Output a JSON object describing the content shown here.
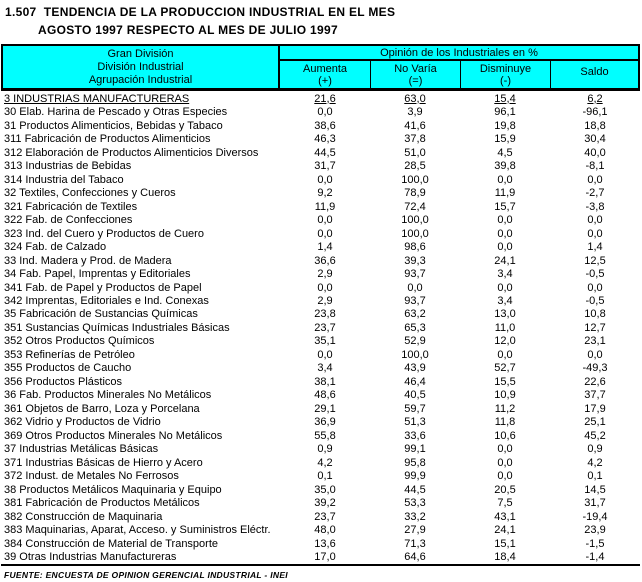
{
  "title": {
    "line1": "1.507  TENDENCIA DE LA PRODUCCION INDUSTRIAL EN EL MES",
    "line2": "AGOSTO 1997 RESPECTO AL MES DE JULIO 1997"
  },
  "table": {
    "header": {
      "left_lines": [
        "Gran División",
        "División Industrial",
        "Agrupación Industrial"
      ],
      "group_title": "Opinión de los Industriales en %",
      "columns": [
        {
          "label": "Aumenta",
          "sign": "(+)"
        },
        {
          "label": "No Varía",
          "sign": "(=)"
        },
        {
          "label": "Disminuye",
          "sign": "(-)"
        },
        {
          "label": "Saldo",
          "sign": ""
        }
      ],
      "header_bg": "#00FFFF"
    },
    "rows": [
      {
        "label": "3 INDUSTRIAS MANUFACTURERAS",
        "aumenta": "21,6",
        "no_varia": "63,0",
        "disminuye": "15,4",
        "saldo": "6,2",
        "underline": true
      },
      {
        "label": "30 Elab. Harina de Pescado y Otras Especies",
        "aumenta": "0,0",
        "no_varia": "3,9",
        "disminuye": "96,1",
        "saldo": "-96,1"
      },
      {
        "label": "31 Productos Alimenticios, Bebidas y Tabaco",
        "aumenta": "38,6",
        "no_varia": "41,6",
        "disminuye": "19,8",
        "saldo": "18,8"
      },
      {
        "label": "311 Fabricación de Productos Alimenticios",
        "aumenta": "46,3",
        "no_varia": "37,8",
        "disminuye": "15,9",
        "saldo": "30,4"
      },
      {
        "label": "312 Elaboración de Productos Alimenticios Diversos",
        "aumenta": "44,5",
        "no_varia": "51,0",
        "disminuye": "4,5",
        "saldo": "40,0"
      },
      {
        "label": "313 Industrias de Bebidas",
        "aumenta": "31,7",
        "no_varia": "28,5",
        "disminuye": "39,8",
        "saldo": "-8,1"
      },
      {
        "label": "314 Industria del Tabaco",
        "aumenta": "0,0",
        "no_varia": "100,0",
        "disminuye": "0,0",
        "saldo": "0,0"
      },
      {
        "label": "32 Textiles, Confecciones y Cueros",
        "aumenta": "9,2",
        "no_varia": "78,9",
        "disminuye": "11,9",
        "saldo": "-2,7"
      },
      {
        "label": "321 Fabricación de Textiles",
        "aumenta": "11,9",
        "no_varia": "72,4",
        "disminuye": "15,7",
        "saldo": "-3,8"
      },
      {
        "label": "322 Fab. de Confecciones",
        "aumenta": "0,0",
        "no_varia": "100,0",
        "disminuye": "0,0",
        "saldo": "0,0"
      },
      {
        "label": "323 Ind. del Cuero y Productos de Cuero",
        "aumenta": "0,0",
        "no_varia": "100,0",
        "disminuye": "0,0",
        "saldo": "0,0"
      },
      {
        "label": "324 Fab. de Calzado",
        "aumenta": "1,4",
        "no_varia": "98,6",
        "disminuye": "0,0",
        "saldo": "1,4"
      },
      {
        "label": "33 Ind. Madera y Prod. de Madera",
        "aumenta": "36,6",
        "no_varia": "39,3",
        "disminuye": "24,1",
        "saldo": "12,5"
      },
      {
        "label": "34 Fab. Papel, Imprentas y Editoriales",
        "aumenta": "2,9",
        "no_varia": "93,7",
        "disminuye": "3,4",
        "saldo": "-0,5"
      },
      {
        "label": "341 Fab. de Papel y Productos de Papel",
        "aumenta": "0,0",
        "no_varia": "0,0",
        "disminuye": "0,0",
        "saldo": "0,0"
      },
      {
        "label": "342 Imprentas, Editoriales e Ind. Conexas",
        "aumenta": "2,9",
        "no_varia": "93,7",
        "disminuye": "3,4",
        "saldo": "-0,5"
      },
      {
        "label": "35 Fabricación de Sustancias Químicas",
        "aumenta": "23,8",
        "no_varia": "63,2",
        "disminuye": "13,0",
        "saldo": "10,8"
      },
      {
        "label": "351 Sustancias Químicas Industriales Básicas",
        "aumenta": "23,7",
        "no_varia": "65,3",
        "disminuye": "11,0",
        "saldo": "12,7"
      },
      {
        "label": "352 Otros Productos Químicos",
        "aumenta": "35,1",
        "no_varia": "52,9",
        "disminuye": "12,0",
        "saldo": "23,1"
      },
      {
        "label": "353 Refinerías de Petróleo",
        "aumenta": "0,0",
        "no_varia": "100,0",
        "disminuye": "0,0",
        "saldo": "0,0"
      },
      {
        "label": "355 Productos de Caucho",
        "aumenta": "3,4",
        "no_varia": "43,9",
        "disminuye": "52,7",
        "saldo": "-49,3"
      },
      {
        "label": "356 Productos Plásticos",
        "aumenta": "38,1",
        "no_varia": "46,4",
        "disminuye": "15,5",
        "saldo": "22,6"
      },
      {
        "label": "36 Fab. Productos Minerales No Metálicos",
        "aumenta": "48,6",
        "no_varia": "40,5",
        "disminuye": "10,9",
        "saldo": "37,7"
      },
      {
        "label": "361 Objetos de Barro, Loza y Porcelana",
        "aumenta": "29,1",
        "no_varia": "59,7",
        "disminuye": "11,2",
        "saldo": "17,9"
      },
      {
        "label": "362 Vidrio y Productos de Vidrio",
        "aumenta": "36,9",
        "no_varia": "51,3",
        "disminuye": "11,8",
        "saldo": "25,1"
      },
      {
        "label": "369 Otros Productos Minerales No Metálicos",
        "aumenta": "55,8",
        "no_varia": "33,6",
        "disminuye": "10,6",
        "saldo": "45,2"
      },
      {
        "label": "37 Industrias Metálicas Básicas",
        "aumenta": "0,9",
        "no_varia": "99,1",
        "disminuye": "0,0",
        "saldo": "0,9"
      },
      {
        "label": "371 Industrias Básicas de Hierro y Acero",
        "aumenta": "4,2",
        "no_varia": "95,8",
        "disminuye": "0,0",
        "saldo": "4,2"
      },
      {
        "label": "372 Indust. de Metales No Ferrosos",
        "aumenta": "0,1",
        "no_varia": "99,9",
        "disminuye": "0,0",
        "saldo": "0,1"
      },
      {
        "label": "38 Productos Metálicos Maquinaria y Equipo",
        "aumenta": "35,0",
        "no_varia": "44,5",
        "disminuye": "20,5",
        "saldo": "14,5"
      },
      {
        "label": "381 Fabricación de Productos Metálicos",
        "aumenta": "39,2",
        "no_varia": "53,3",
        "disminuye": "7,5",
        "saldo": "31,7"
      },
      {
        "label": "382 Construcción de Maquinaria",
        "aumenta": "23,7",
        "no_varia": "33,2",
        "disminuye": "43,1",
        "saldo": "-19,4"
      },
      {
        "label": "383 Maquinarias, Aparat, Acceso. y Suministros Eléctr.",
        "aumenta": "48,0",
        "no_varia": "27,9",
        "disminuye": "24,1",
        "saldo": "23,9"
      },
      {
        "label": "384 Construcción de Material de Transporte",
        "aumenta": "13,6",
        "no_varia": "71,3",
        "disminuye": "15,1",
        "saldo": "-1,5"
      },
      {
        "label": "39 Otras Industrias Manufactureras",
        "aumenta": "17,0",
        "no_varia": "64,6",
        "disminuye": "18,4",
        "saldo": "-1,4"
      }
    ]
  },
  "footer": {
    "source": "FUENTE: ENCUESTA DE OPINION GERENCIAL INDUSTRIAL - INEI"
  }
}
